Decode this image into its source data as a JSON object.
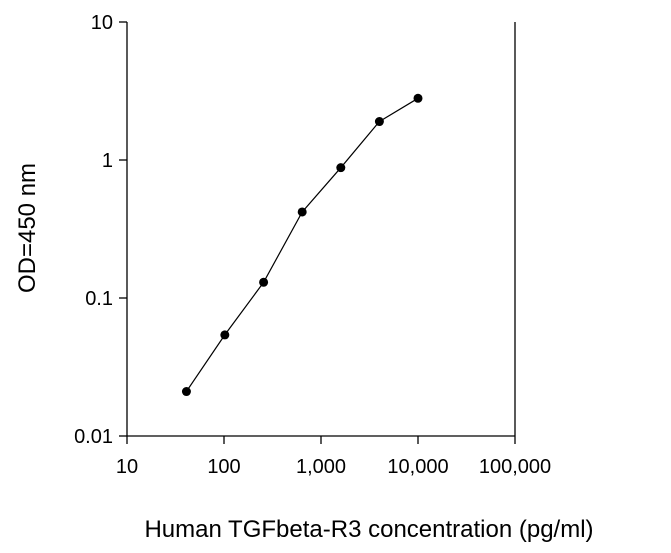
{
  "chart_data": {
    "type": "line",
    "title": "",
    "xlabel": "Human TGFbeta-R3 concentration (pg/ml)",
    "ylabel": "OD=450 nm",
    "xscale": "log",
    "yscale": "log",
    "xlim": [
      10,
      100000
    ],
    "ylim": [
      0.01,
      10
    ],
    "x_ticks": [
      10,
      100,
      1000,
      10000,
      100000
    ],
    "x_tick_labels": [
      "10",
      "100",
      "1,000",
      "10,000",
      "100,000"
    ],
    "y_ticks": [
      0.01,
      0.1,
      1,
      10
    ],
    "y_tick_labels": [
      "0.01",
      "0.1",
      "1",
      "10"
    ],
    "grid": false,
    "legend": "none",
    "series": [
      {
        "x": [
          41,
          102,
          256,
          640,
          1600,
          4000,
          10000
        ],
        "y": [
          0.021,
          0.054,
          0.13,
          0.42,
          0.88,
          1.9,
          2.8
        ],
        "color": "#000000",
        "marker": "circle"
      }
    ]
  }
}
